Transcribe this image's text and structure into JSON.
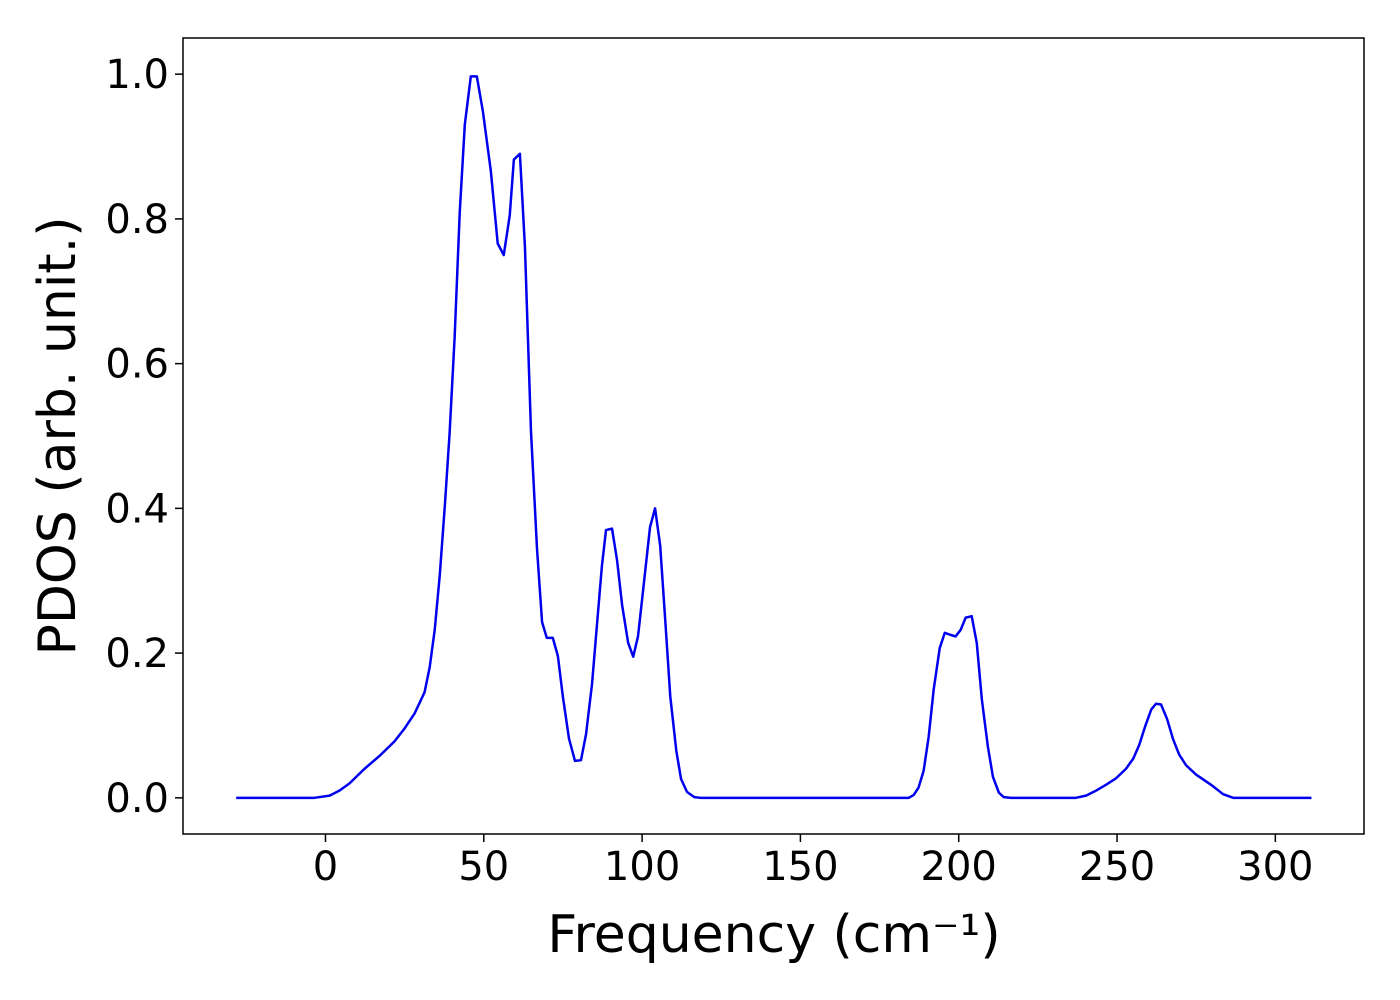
{
  "chart_data": {
    "type": "line",
    "x_label": "Frequency (cm⁻¹)",
    "y_label": "PDOS (arb. unit.)",
    "xlim": [
      -45,
      328
    ],
    "ylim": [
      -0.05,
      1.05
    ],
    "xticks": [
      0,
      50,
      100,
      150,
      200,
      250,
      300
    ],
    "yticks": [
      {
        "value": 0,
        "label": "0.0"
      },
      {
        "value": 0.2,
        "label": "0.2"
      },
      {
        "value": 0.4,
        "label": "0.4"
      },
      {
        "value": 0.6,
        "label": "0.6"
      },
      {
        "value": 0.8,
        "label": "0.8"
      },
      {
        "value": 1,
        "label": "1.0"
      }
    ],
    "grid": false,
    "series": [
      {
        "color": "#0000ee",
        "x": [
          -28.2,
          -3.5,
          1.3,
          4.4,
          7.6,
          12.3,
          17.1,
          21.8,
          25,
          28.2,
          31.3,
          32.9,
          34.5,
          36.1,
          37.7,
          39.2,
          40.8,
          42.4,
          44,
          45.9,
          47.8,
          49.7,
          52.2,
          54.4,
          56.3,
          58.2,
          59.5,
          61.4,
          63,
          64.9,
          66.8,
          68.4,
          69.9,
          71.8,
          73.4,
          75,
          76.9,
          78.8,
          80.7,
          82.3,
          84.2,
          85.8,
          87.3,
          88.6,
          90.5,
          92.1,
          93.7,
          95.6,
          97.2,
          98.7,
          100.6,
          102.5,
          104.1,
          105.7,
          107.3,
          108.9,
          110.8,
          112.3,
          114.2,
          116.5,
          118.4,
          184.2,
          185.8,
          187.3,
          188.9,
          190.5,
          192.1,
          194,
          195.6,
          197.5,
          199,
          200.6,
          202.2,
          204.1,
          205.7,
          207.3,
          209.2,
          210.8,
          212.7,
          214.2,
          216.5,
          237,
          240.2,
          243.4,
          246.5,
          249.7,
          252.8,
          255.1,
          257,
          258.9,
          260.8,
          262.3,
          263.9,
          265.8,
          267.7,
          269.6,
          271.8,
          275,
          279.7,
          283.5,
          286.7,
          311.4
        ],
        "values": [
          0,
          0,
          0.003,
          0.01,
          0.02,
          0.04,
          0.058,
          0.078,
          0.096,
          0.117,
          0.146,
          0.18,
          0.232,
          0.308,
          0.404,
          0.504,
          0.637,
          0.809,
          0.93,
          0.997,
          0.997,
          0.949,
          0.867,
          0.766,
          0.75,
          0.805,
          0.882,
          0.89,
          0.761,
          0.507,
          0.345,
          0.243,
          0.221,
          0.221,
          0.196,
          0.139,
          0.082,
          0.051,
          0.052,
          0.088,
          0.158,
          0.242,
          0.32,
          0.37,
          0.372,
          0.328,
          0.266,
          0.214,
          0.195,
          0.223,
          0.298,
          0.374,
          0.4,
          0.349,
          0.246,
          0.14,
          0.065,
          0.026,
          0.008,
          0.001,
          0,
          0,
          0.004,
          0.014,
          0.037,
          0.084,
          0.15,
          0.207,
          0.228,
          0.225,
          0.223,
          0.232,
          0.249,
          0.251,
          0.214,
          0.136,
          0.071,
          0.029,
          0.007,
          0.001,
          0,
          0,
          0.003,
          0.01,
          0.018,
          0.027,
          0.04,
          0.054,
          0.073,
          0.099,
          0.122,
          0.13,
          0.129,
          0.109,
          0.081,
          0.06,
          0.045,
          0.032,
          0.018,
          0.005,
          0,
          0
        ]
      }
    ]
  }
}
